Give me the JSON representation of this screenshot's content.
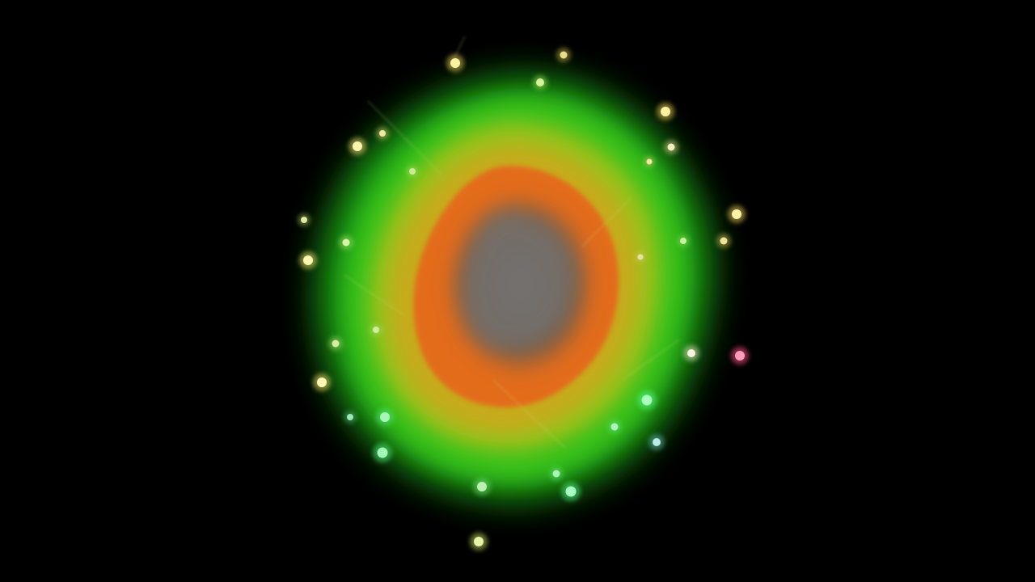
{
  "image": {
    "background_color": "#000000",
    "subject": "glowing-particle-burst",
    "palette": {
      "outer_glow": "#2fbf1a",
      "mid_ring": "#b8c21c",
      "inner_ring": "#e8631e",
      "core": "#6b6b6b",
      "particle_yellow": "#f4e66a",
      "particle_green": "#5df07a",
      "particle_pink": "#ff5a8a"
    }
  }
}
